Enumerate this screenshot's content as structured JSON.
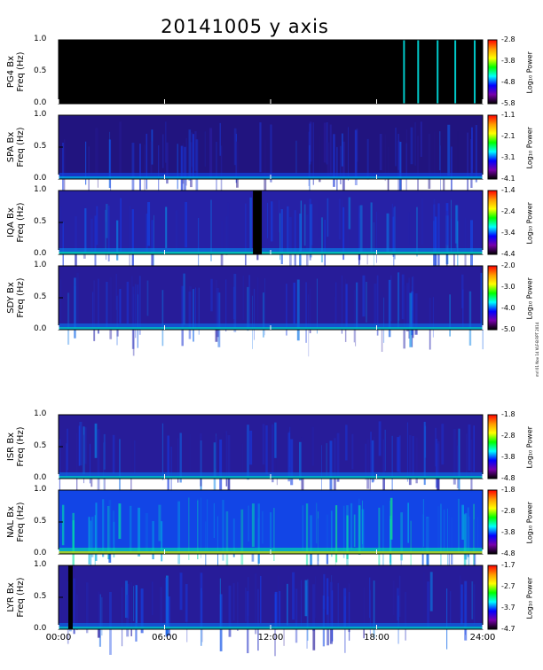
{
  "chart_data": [
    {
      "type": "heatmap",
      "station": "PG4",
      "ylabel": "PG4 Bx\nFreq (Hz)",
      "clabel": "Log₁₀ Power",
      "yticks": [
        "1.0",
        "0.5",
        "0.0"
      ],
      "cticks": [
        "-2.8",
        "-3.8",
        "-4.8",
        "-5.8"
      ],
      "ylim": [
        0,
        1
      ],
      "clim": [
        -5.8,
        -2.8
      ],
      "data_gaps_hours": [
        [
          0,
          19.5
        ],
        [
          19.55,
          20.3
        ],
        [
          20.35,
          21.4
        ],
        [
          21.45,
          22.4
        ],
        [
          22.45,
          23.5
        ],
        [
          23.55,
          24
        ]
      ],
      "mean_level": -5.8
    },
    {
      "type": "heatmap",
      "station": "SPA",
      "ylabel": "SPA Bx\nFreq (Hz)",
      "clabel": "Log₁₀ Power",
      "yticks": [
        "1.0",
        "0.5",
        "0.0"
      ],
      "cticks": [
        "-1.1",
        "-2.1",
        "-3.1",
        "-4.1"
      ],
      "ylim": [
        0,
        1
      ],
      "clim": [
        -4.1,
        -1.1
      ],
      "data_gaps_hours": [],
      "mean_level": -3.6
    },
    {
      "type": "heatmap",
      "station": "IQA",
      "ylabel": "IQA Bx\nFreq (Hz)",
      "clabel": "Log₁₀ Power",
      "yticks": [
        "1.0",
        "0.5",
        "0.0"
      ],
      "cticks": [
        "-1.4",
        "-2.4",
        "-3.4",
        "-4.4"
      ],
      "ylim": [
        0,
        1
      ],
      "clim": [
        -4.4,
        -1.4
      ],
      "data_gaps_hours": [
        [
          11.0,
          11.5
        ]
      ],
      "mean_level": -3.6
    },
    {
      "type": "heatmap",
      "station": "SDY",
      "ylabel": "SDY Bx\nFreq (Hz)",
      "clabel": "Log₁₀ Power",
      "yticks": [
        "1.0",
        "0.5",
        "0.0"
      ],
      "cticks": [
        "-2.0",
        "-3.0",
        "-4.0",
        "-5.0"
      ],
      "ylim": [
        0,
        1
      ],
      "clim": [
        -5.0,
        -2.0
      ],
      "data_gaps_hours": [],
      "mean_level": -4.3
    },
    {
      "type": "heatmap",
      "station": "ISR",
      "ylabel": "ISR Bx\nFreq (Hz)",
      "clabel": "Log₁₀ Power",
      "yticks": [
        "1.0",
        "0.5",
        "0.0"
      ],
      "cticks": [
        "-1.8",
        "-2.8",
        "-3.8",
        "-4.8"
      ],
      "ylim": [
        0,
        1
      ],
      "clim": [
        -4.8,
        -1.8
      ],
      "data_gaps_hours": [],
      "mean_level": -4.1
    },
    {
      "type": "heatmap",
      "station": "NAL",
      "ylabel": "NAL Bx\nFreq (Hz)",
      "clabel": "Log₁₀ Power",
      "yticks": [
        "1.0",
        "0.5",
        "0.0"
      ],
      "cticks": [
        "-1.8",
        "-2.8",
        "-3.8",
        "-4.8"
      ],
      "ylim": [
        0,
        1
      ],
      "clim": [
        -4.8,
        -1.8
      ],
      "data_gaps_hours": [],
      "mean_level": -3.4
    },
    {
      "type": "heatmap",
      "station": "LYR",
      "ylabel": "LYR Bx\nFreq (Hz)",
      "clabel": "Log₁₀ Power",
      "yticks": [
        "1.0",
        "0.5",
        "0.0"
      ],
      "cticks": [
        "-1.7",
        "-2.7",
        "-3.7",
        "-4.7"
      ],
      "ylim": [
        0,
        1
      ],
      "clim": [
        -4.7,
        -1.7
      ],
      "data_gaps_hours": [
        [
          0.55,
          0.8
        ]
      ],
      "mean_level": -4.0
    }
  ],
  "figure": {
    "title": "20141005 y axis",
    "xticks": [
      "00:00",
      "06:00",
      "12:00",
      "18:00",
      "24:00"
    ],
    "xlim_hours": [
      0,
      24
    ],
    "stamp": "mrl 01 Nov 14 VLF-B RPT 2014",
    "colorbar_colors": [
      "#ff0000",
      "#ff9900",
      "#ffff00",
      "#00ff00",
      "#00ffff",
      "#0000ff",
      "#7700aa",
      "#000000"
    ]
  }
}
